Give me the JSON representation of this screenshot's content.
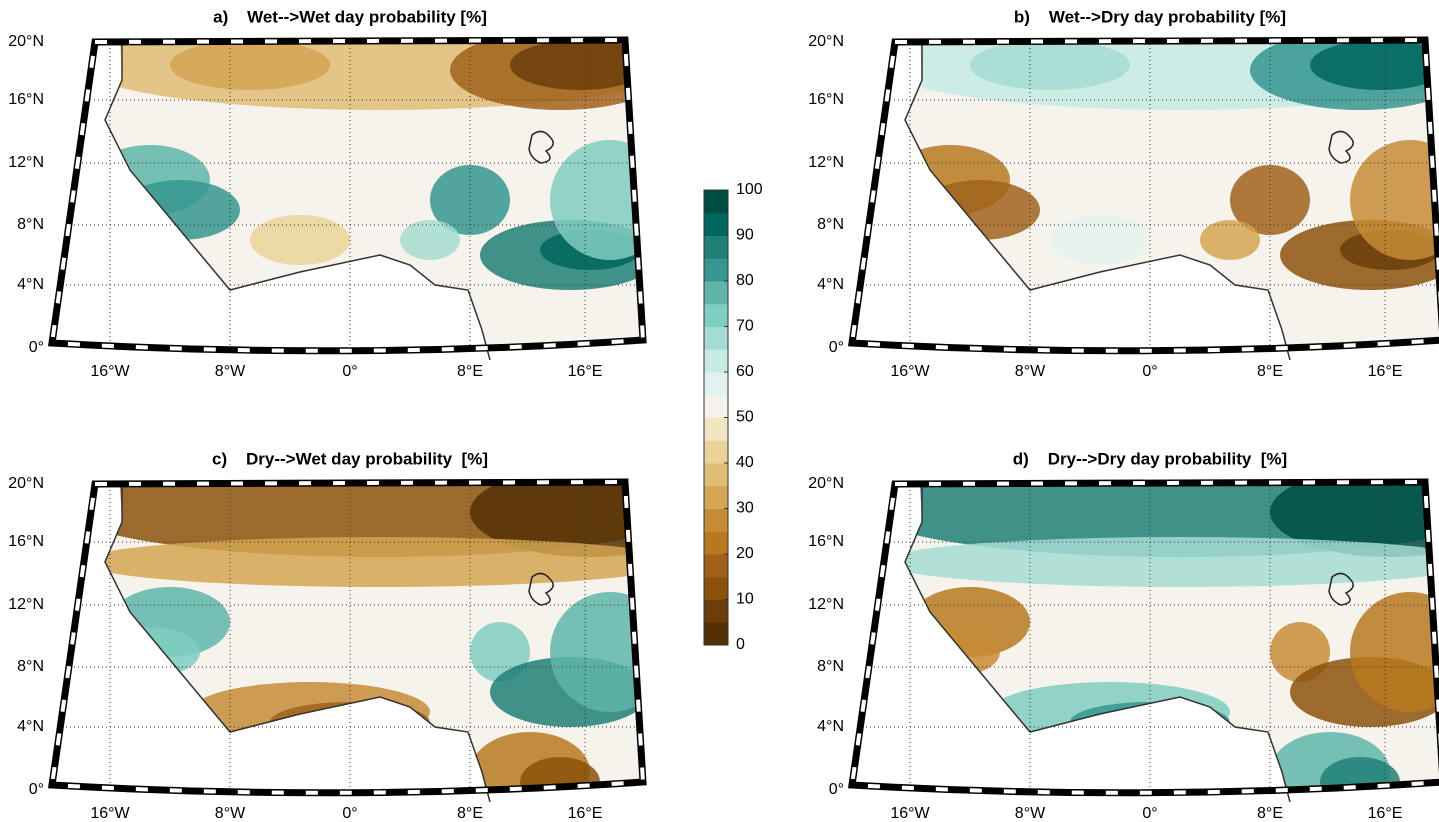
{
  "panels": [
    {
      "title": "a)    Wet-->Wet day probability [%]"
    },
    {
      "title": "b)    Wet-->Dry day probability [%]"
    },
    {
      "title": "c)    Dry-->Wet day probability  [%]"
    },
    {
      "title": "d)    Dry-->Dry day probability  [%]"
    }
  ],
  "lat_labels": [
    "20°N",
    "16°N",
    "12°N",
    "8°N",
    "4°N",
    "0°"
  ],
  "lon_labels": [
    "16°W",
    "8°W",
    "0°",
    "8°E",
    "16°E"
  ],
  "colorbar": {
    "ticks": [
      0,
      10,
      20,
      30,
      40,
      50,
      60,
      70,
      80,
      90,
      100
    ],
    "colors": [
      "#543005",
      "#6b3d0a",
      "#8c510a",
      "#a0621a",
      "#b7791f",
      "#c68b36",
      "#d4a552",
      "#dfbd75",
      "#ead39a",
      "#f3e5c2",
      "#f5f3ec",
      "#e3f2ef",
      "#c7eae5",
      "#a4dcd4",
      "#80cdc1",
      "#5fb5aa",
      "#35978f",
      "#208077",
      "#01665e",
      "#004d43"
    ]
  }
}
